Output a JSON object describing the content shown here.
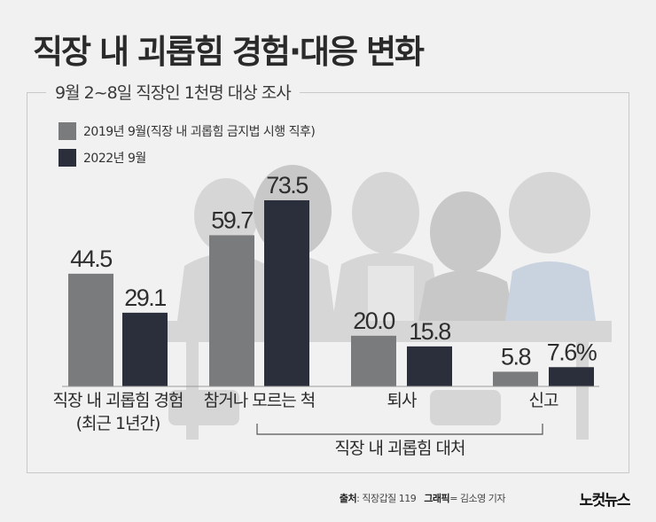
{
  "title": "직장 내 괴롭힘 경험·대응 변화",
  "subtitle": "9월 2~8일 직장인 1천명 대상 조사",
  "colors": {
    "series_2019": "#7a7b7c",
    "series_2022": "#2b2e3b",
    "illustration": "#d6d6d6",
    "illustration_dark": "#c8c8c8",
    "illustration_accent": "#c9d3df"
  },
  "chart_data": {
    "type": "bar",
    "categories": [
      "직장 내 괴롭힘 경험\n(최근 1년간)",
      "참거나 모르는 척",
      "퇴사",
      "신고"
    ],
    "series": [
      {
        "name": "2019년 9월(직장 내 괴롭힘 금지법 시행 직후)",
        "values": [
          44.5,
          59.7,
          20.0,
          5.8
        ]
      },
      {
        "name": "2022년 9월",
        "values": [
          29.1,
          73.5,
          15.8,
          7.6
        ]
      }
    ],
    "value_labels": [
      [
        "44.5",
        "59.7",
        "20.0",
        "5.8"
      ],
      [
        "29.1",
        "73.5",
        "15.8",
        "7.6%"
      ]
    ],
    "group_label": "직장 내 괴롭힘 대처",
    "ylim": [
      0,
      73.5
    ],
    "legend_position": "top-left",
    "grid": false
  },
  "source": {
    "label": "출처",
    "value": ": 직장갑질 119",
    "graphic_label": "그래픽",
    "graphic_value": "= 김소영 기자"
  },
  "logo_text": "노컷뉴스"
}
